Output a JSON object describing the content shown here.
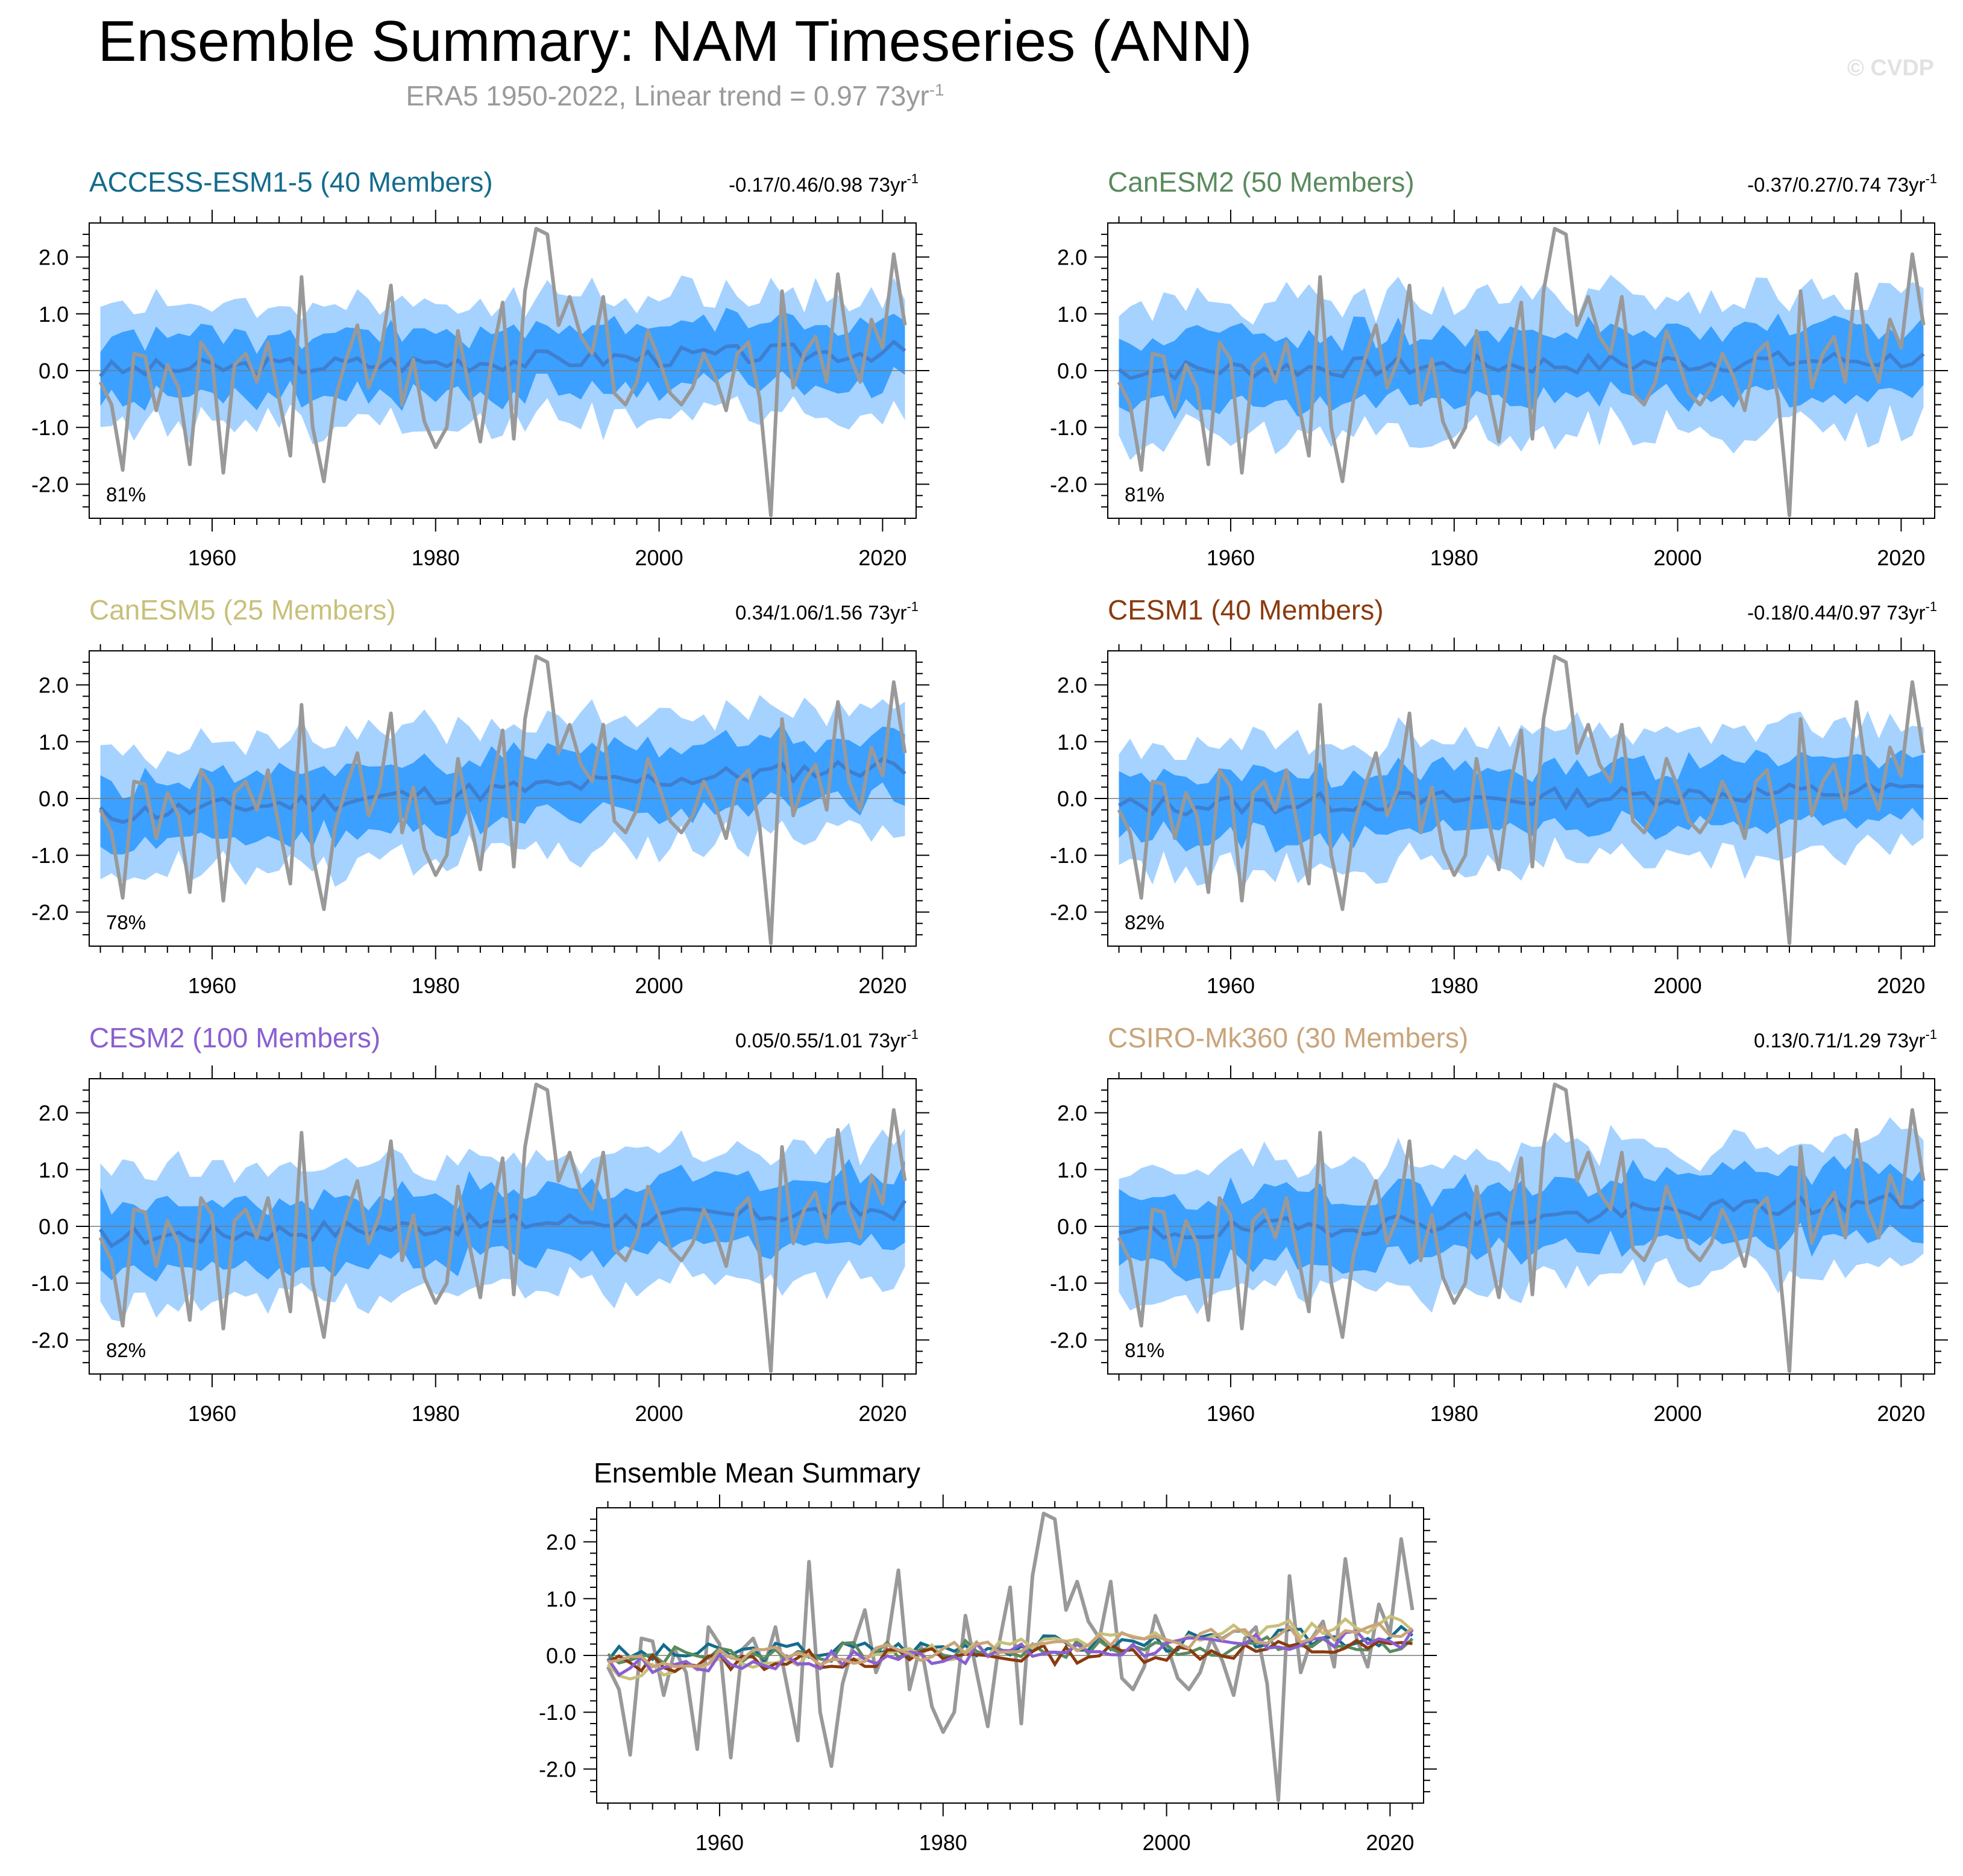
{
  "header": {
    "title": "Ensemble Summary: NAM Timeseries (ANN)",
    "subtitle_text": "ERA5 1950-2022, Linear trend = 0.97 73yr",
    "subtitle_exp": "-1",
    "watermark": "© CVDP"
  },
  "colors": {
    "outer_band": "#a6d2ff",
    "inner_band": "#3ba0ff",
    "ens_mean_line": "#3f7fd0",
    "obs_line": "#999999"
  },
  "chart_data": [
    {
      "type": "line",
      "title": "ACCESS-ESM1-5 (40 Members)",
      "title_color": "#136c8c",
      "trend_text": "-0.17/0.46/0.98 73yr",
      "trend_exp": "-1",
      "pct_text": "81%",
      "xlim": [
        1949,
        2023
      ],
      "ylim": [
        -2.6,
        2.6
      ],
      "xticks": [
        1960,
        1980,
        2000,
        2020
      ],
      "ytick_labels": [
        "2.0",
        "1.0",
        "0.0",
        "-1.0",
        "-2.0"
      ],
      "ytick_values": [
        2,
        1,
        0,
        -1,
        -2
      ],
      "mean_offset": 0.0,
      "mean_trend": 0.35,
      "mean_seed": 3,
      "band_halfwidth": 0.95,
      "inner_halfwidth": 0.55
    },
    {
      "type": "line",
      "title": "CanESM2 (50 Members)",
      "title_color": "#5a8a5e",
      "trend_text": "-0.37/0.27/0.74 73yr",
      "trend_exp": "-1",
      "pct_text": "81%",
      "xlim": [
        1949,
        2023
      ],
      "ylim": [
        -2.6,
        2.6
      ],
      "xticks": [
        1960,
        1980,
        2000,
        2020
      ],
      "ytick_labels": [
        "2.0",
        "1.0",
        "0.0",
        "-1.0",
        "-2.0"
      ],
      "ytick_values": [
        2,
        1,
        0,
        -1,
        -2
      ],
      "mean_offset": 0.0,
      "mean_trend": 0.2,
      "mean_seed": 7,
      "band_halfwidth": 1.05,
      "inner_halfwidth": 0.6
    },
    {
      "type": "line",
      "title": "CanESM5 (25 Members)",
      "title_color": "#c8c07a",
      "trend_text": "0.34/1.06/1.56 73yr",
      "trend_exp": "-1",
      "pct_text": "78%",
      "xlim": [
        1949,
        2023
      ],
      "ylim": [
        -2.6,
        2.6
      ],
      "xticks": [
        1960,
        1980,
        2000,
        2020
      ],
      "ytick_labels": [
        "2.0",
        "1.0",
        "0.0",
        "-1.0",
        "-2.0"
      ],
      "ytick_values": [
        2,
        1,
        0,
        -1,
        -2
      ],
      "mean_offset": -0.3,
      "mean_trend": 0.9,
      "mean_seed": 11,
      "band_halfwidth": 1.0,
      "inner_halfwidth": 0.55
    },
    {
      "type": "line",
      "title": "CESM1 (40 Members)",
      "title_color": "#8b3a0e",
      "trend_text": "-0.18/0.44/0.97 73yr",
      "trend_exp": "-1",
      "pct_text": "82%",
      "xlim": [
        1949,
        2023
      ],
      "ylim": [
        -2.6,
        2.6
      ],
      "xticks": [
        1960,
        1980,
        2000,
        2020
      ],
      "ytick_labels": [
        "2.0",
        "1.0",
        "0.0",
        "-1.0",
        "-2.0"
      ],
      "ytick_values": [
        2,
        1,
        0,
        -1,
        -2
      ],
      "mean_offset": -0.15,
      "mean_trend": 0.3,
      "mean_seed": 13,
      "band_halfwidth": 1.0,
      "inner_halfwidth": 0.55
    },
    {
      "type": "line",
      "title": "CESM2 (100 Members)",
      "title_color": "#8a5fd0",
      "trend_text": "0.05/0.55/1.01 73yr",
      "trend_exp": "-1",
      "pct_text": "82%",
      "xlim": [
        1949,
        2023
      ],
      "ylim": [
        -2.6,
        2.6
      ],
      "xticks": [
        1960,
        1980,
        2000,
        2020
      ],
      "ytick_labels": [
        "2.0",
        "1.0",
        "0.0",
        "-1.0",
        "-2.0"
      ],
      "ytick_values": [
        2,
        1,
        0,
        -1,
        -2
      ],
      "mean_offset": -0.2,
      "mean_trend": 0.5,
      "mean_seed": 17,
      "band_halfwidth": 1.05,
      "inner_halfwidth": 0.6
    },
    {
      "type": "line",
      "title": "CSIRO-Mk360 (30 Members)",
      "title_color": "#c9a47a",
      "trend_text": "0.13/0.71/1.29 73yr",
      "trend_exp": "-1",
      "pct_text": "81%",
      "xlim": [
        1949,
        2023
      ],
      "ylim": [
        -2.6,
        2.6
      ],
      "xticks": [
        1960,
        1980,
        2000,
        2020
      ],
      "ytick_labels": [
        "2.0",
        "1.0",
        "0.0",
        "-1.0",
        "-2.0"
      ],
      "ytick_values": [
        2,
        1,
        0,
        -1,
        -2
      ],
      "mean_offset": -0.15,
      "mean_trend": 0.6,
      "mean_seed": 19,
      "band_halfwidth": 1.05,
      "inner_halfwidth": 0.6
    },
    {
      "type": "line",
      "title": "Ensemble Mean Summary",
      "xlim": [
        1949,
        2023
      ],
      "ylim": [
        -2.6,
        2.6
      ],
      "xticks": [
        1960,
        1980,
        2000,
        2020
      ],
      "ytick_labels": [
        "2.0",
        "1.0",
        "0.0",
        "-1.0",
        "-2.0"
      ],
      "ytick_values": [
        2,
        1,
        0,
        -1,
        -2
      ],
      "series_colors": [
        "#136c8c",
        "#5a8a5e",
        "#c8c07a",
        "#8b3a0e",
        "#8a5fd0",
        "#c9a47a"
      ]
    }
  ],
  "observations": {
    "name": "ERA5",
    "years_start": 1950,
    "values": [
      -0.2,
      -0.6,
      -1.75,
      0.3,
      0.25,
      -0.7,
      0.1,
      -0.3,
      -1.65,
      0.5,
      0.2,
      -1.8,
      0.1,
      0.3,
      -0.2,
      0.5,
      -0.5,
      -1.5,
      1.65,
      -1.0,
      -1.95,
      -0.5,
      0.2,
      0.8,
      -0.3,
      0.2,
      1.5,
      -0.6,
      0.2,
      -0.9,
      -1.35,
      -1.0,
      0.7,
      -0.3,
      -1.25,
      0.2,
      1.2,
      -1.2,
      1.4,
      2.5,
      2.4,
      0.8,
      1.3,
      0.6,
      0.3,
      1.3,
      -0.4,
      -0.6,
      -0.2,
      0.7,
      0.2,
      -0.4,
      -0.6,
      -0.3,
      0.3,
      -0.1,
      -0.7,
      0.3,
      0.5,
      -0.5,
      -2.55,
      1.4,
      -0.3,
      0.3,
      0.6,
      -0.2,
      1.7,
      0.3,
      -0.2,
      0.9,
      0.4,
      2.05,
      0.8
    ]
  }
}
